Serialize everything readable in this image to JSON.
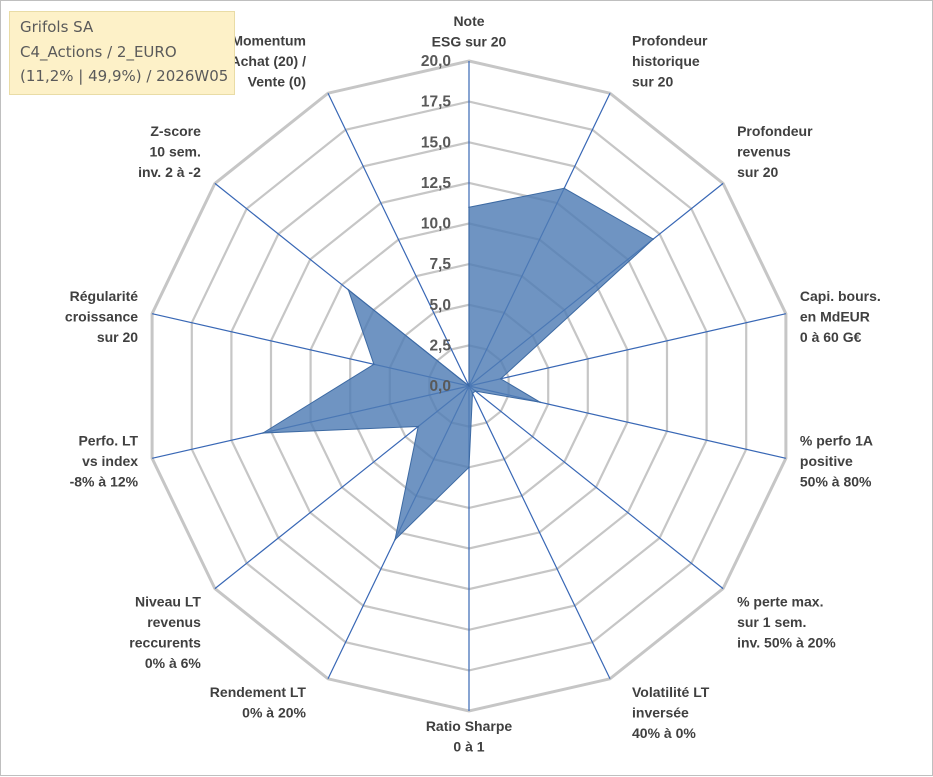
{
  "header": {
    "lines": [
      "Grifols SA",
      "C4_Actions / 2_EURO",
      "(11,2% | 49,9%) / 2026W05"
    ]
  },
  "colors": {
    "series_fill": "#4f7db5",
    "series_stroke": "#3d6aa3",
    "axis_line": "#3867b5",
    "grid": "#c6c6c6"
  },
  "chart_data": {
    "type": "radar",
    "title": "",
    "range": [
      0,
      20
    ],
    "tick_step": 2.5,
    "tick_labels": [
      "0,0",
      "2,5",
      "5,0",
      "7,5",
      "10,0",
      "12,5",
      "15,0",
      "17,5",
      "20,0"
    ],
    "axes": [
      [
        "Note",
        "ESG sur 20"
      ],
      [
        "Profondeur",
        "historique",
        "sur 20"
      ],
      [
        "Profondeur",
        "revenus",
        "sur 20"
      ],
      [
        "Capi. bours.",
        "en MdEUR",
        "0 à 60 G€"
      ],
      [
        "% perfo 1A",
        "positive",
        "50% à 80%"
      ],
      [
        "% perte max.",
        "sur 1 sem.",
        "inv. 50% à 20%"
      ],
      [
        "Volatilité LT",
        "inversée",
        "40% à 0%"
      ],
      [
        "Ratio Sharpe",
        "0 à 1"
      ],
      [
        "Rendement LT",
        "0% à 20%"
      ],
      [
        "Niveau LT",
        "revenus",
        "reccurents",
        "0% à 6%"
      ],
      [
        "Perfo. LT",
        "vs index",
        "-8% à 12%"
      ],
      [
        "Régularité",
        "croissance",
        "sur 20"
      ],
      [
        "Z-score",
        "10 sem.",
        "inv. 2 à -2"
      ],
      [
        "Momentum",
        "Achat (20) /",
        "Vente (0)"
      ]
    ],
    "series": [
      {
        "values": [
          11,
          13.5,
          14.5,
          2,
          4.5,
          0.5,
          0.5,
          5,
          10.5,
          4,
          13,
          6,
          9.5,
          0
        ]
      }
    ],
    "grid": true,
    "legend": "none"
  }
}
